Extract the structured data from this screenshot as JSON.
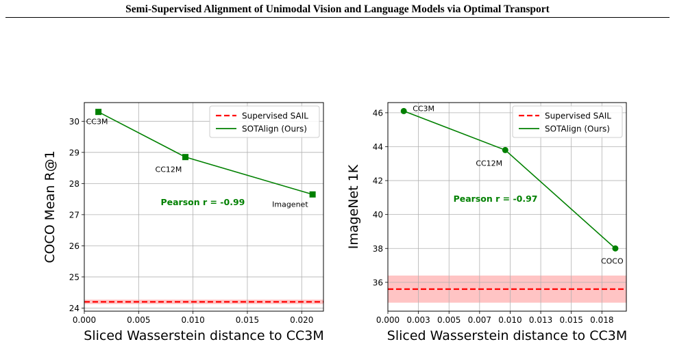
{
  "header": {
    "title": "Semi-Supervised Alignment of Unimodal Vision and Language Models via Optimal Transport"
  },
  "chart_data": [
    {
      "type": "line",
      "xlabel": "Sliced Wasserstein distance to CC3M",
      "ylabel": "COCO Mean R@1",
      "xlim": [
        0.0,
        0.022
      ],
      "ylim": [
        23.9,
        30.6
      ],
      "xticks": [
        "0.000",
        "0.005",
        "0.010",
        "0.015",
        "0.020"
      ],
      "xtick_values": [
        0.0,
        0.005,
        0.01,
        0.015,
        0.02
      ],
      "yticks": [
        "24",
        "25",
        "26",
        "27",
        "28",
        "29",
        "30"
      ],
      "ytick_values": [
        24,
        25,
        26,
        27,
        28,
        29,
        30
      ],
      "grid": true,
      "legend_position": "top-right",
      "series": [
        {
          "name": "SOTAlign (Ours)",
          "color": "#008000",
          "marker": "square",
          "points": [
            {
              "x": 0.0013,
              "y": 30.3,
              "label": "CC3M"
            },
            {
              "x": 0.0093,
              "y": 28.85,
              "label": "CC12M"
            },
            {
              "x": 0.021,
              "y": 27.65,
              "label": "Imagenet"
            }
          ]
        }
      ],
      "reference": {
        "name": "Supervised SAIL",
        "color": "#ff0000",
        "value": 24.2,
        "band": [
          24.13,
          24.27
        ],
        "band_color": "#ffb0b0"
      },
      "annotation": {
        "text": "Pearson r = -0.99",
        "x": 0.0109,
        "y": 27.3,
        "color": "#008000"
      }
    },
    {
      "type": "line",
      "xlabel": "Sliced Wasserstein distance to CC3M",
      "ylabel": "ImageNet 1K",
      "xlim": [
        0.0,
        0.0195
      ],
      "ylim": [
        34.3,
        46.6
      ],
      "xticks": [
        "0.000",
        "0.003",
        "0.005",
        "0.007",
        "0.010",
        "0.013",
        "0.015",
        "0.018"
      ],
      "xtick_values": [
        0.0,
        0.0025,
        0.005,
        0.0075,
        0.01,
        0.0125,
        0.015,
        0.0175
      ],
      "yticks": [
        "36",
        "38",
        "40",
        "42",
        "44",
        "46"
      ],
      "ytick_values": [
        36,
        38,
        40,
        42,
        44,
        46
      ],
      "grid": true,
      "legend_position": "top-right",
      "series": [
        {
          "name": "SOTAlign (Ours)",
          "color": "#008000",
          "marker": "circle",
          "points": [
            {
              "x": 0.0013,
              "y": 46.1,
              "label": "CC3M"
            },
            {
              "x": 0.0096,
              "y": 43.8,
              "label": "CC12M"
            },
            {
              "x": 0.0186,
              "y": 38.0,
              "label": "COCO"
            }
          ]
        }
      ],
      "reference": {
        "name": "Supervised SAIL",
        "color": "#ff0000",
        "value": 35.6,
        "band": [
          34.8,
          36.4
        ],
        "band_color": "#ffb0b0"
      },
      "annotation": {
        "text": "Pearson r = -0.97",
        "x": 0.0088,
        "y": 40.75,
        "color": "#008000"
      }
    }
  ]
}
